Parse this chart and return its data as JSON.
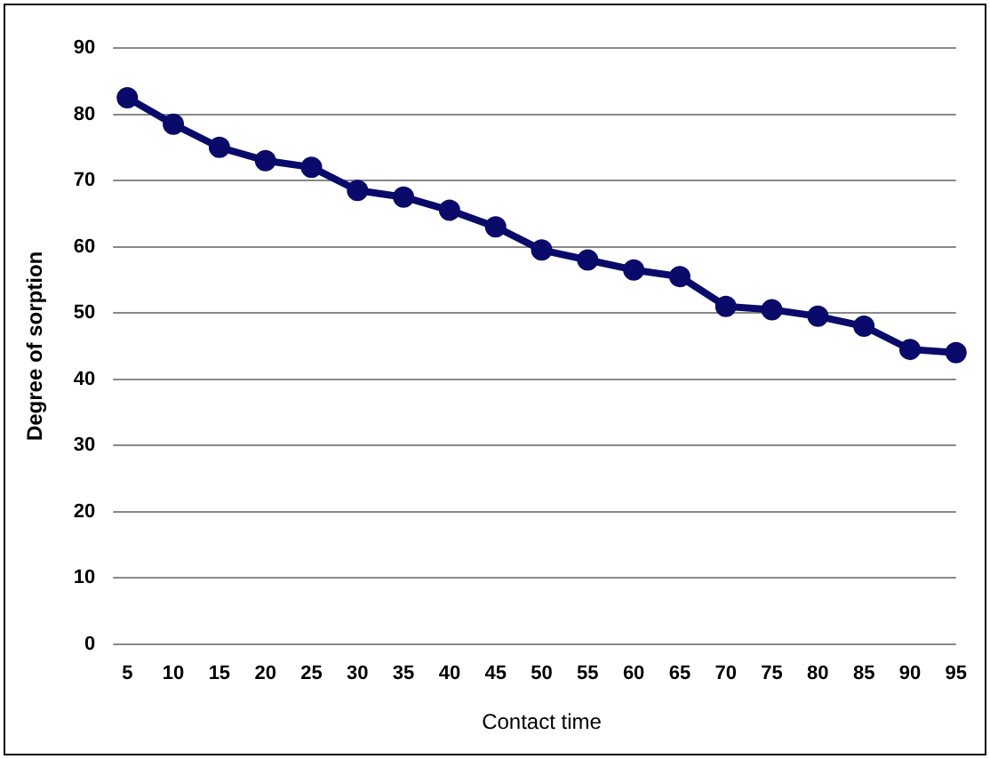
{
  "chart_data": {
    "type": "line",
    "xlabel": "Contact time",
    "ylabel": "Degree of sorption",
    "categories": [
      "5",
      "10",
      "15",
      "20",
      "25",
      "30",
      "35",
      "40",
      "45",
      "50",
      "55",
      "60",
      "65",
      "70",
      "75",
      "80",
      "85",
      "90",
      "95"
    ],
    "series": [
      {
        "color": "#0a0a6b",
        "values": [
          82.5,
          78.5,
          75,
          73,
          72,
          68.5,
          67.5,
          65.5,
          63,
          59.5,
          58,
          56.5,
          55.5,
          51,
          50.5,
          49.5,
          48,
          44.5,
          44
        ]
      }
    ],
    "ylim": [
      0,
      90
    ],
    "yticks": [
      0,
      10,
      20,
      30,
      40,
      50,
      60,
      70,
      80,
      90
    ],
    "grid": "y",
    "legend": false,
    "marker": "circle",
    "line_style": "solid"
  }
}
